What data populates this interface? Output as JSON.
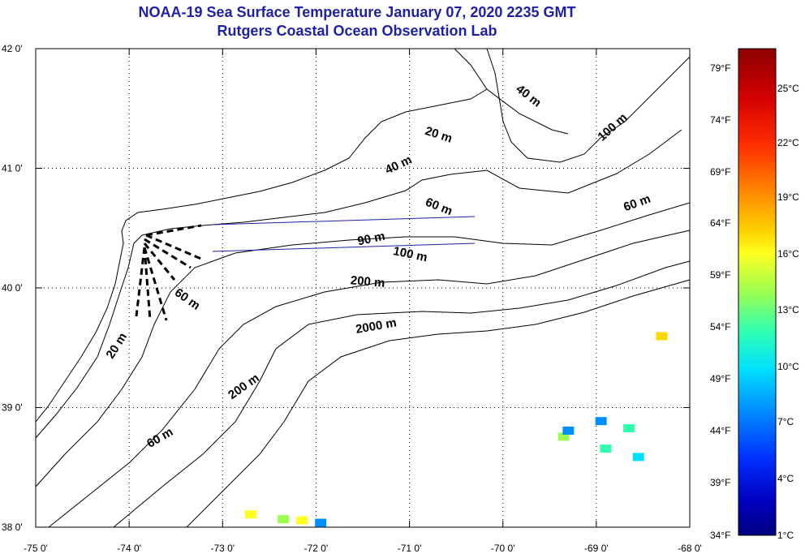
{
  "header": {
    "title": "NOAA-19 Sea Surface Temperature January 07, 2020 2235 GMT",
    "subtitle": "Rutgers Coastal Ocean Observation Lab"
  },
  "map": {
    "lon_range": [
      -75,
      -68
    ],
    "lat_range": [
      38,
      42
    ],
    "lat_ticks": [
      {
        "value": 42,
        "label": "42 0'"
      },
      {
        "value": 41,
        "label": "41 0'"
      },
      {
        "value": 40,
        "label": "40 0'"
      },
      {
        "value": 39,
        "label": "39 0'"
      },
      {
        "value": 38,
        "label": "38 0'"
      }
    ],
    "lon_ticks": [
      {
        "value": -75,
        "label": "-75 0'"
      },
      {
        "value": -74,
        "label": "-74 0'"
      },
      {
        "value": -73,
        "label": "-73 0'"
      },
      {
        "value": -72,
        "label": "-72 0'"
      },
      {
        "value": -71,
        "label": "-71 0'"
      },
      {
        "value": -70,
        "label": "-70 0'"
      },
      {
        "value": -69,
        "label": "-69 0'"
      },
      {
        "value": -68,
        "label": "-68 0'"
      }
    ],
    "grid": "dotted",
    "isobath_labels": [
      {
        "text": "40 m",
        "lon": -69.75,
        "lat": 41.58,
        "rot": 38
      },
      {
        "text": "100 m",
        "lon": -68.8,
        "lat": 41.32,
        "rot": -42
      },
      {
        "text": "20 m",
        "lon": -70.7,
        "lat": 41.25,
        "rot": 18
      },
      {
        "text": "40 m",
        "lon": -71.1,
        "lat": 41.0,
        "rot": -25
      },
      {
        "text": "60 m",
        "lon": -70.7,
        "lat": 40.65,
        "rot": 22
      },
      {
        "text": "60 m",
        "lon": -68.55,
        "lat": 40.68,
        "rot": -20
      },
      {
        "text": "90 m",
        "lon": -71.4,
        "lat": 40.38,
        "rot": -12
      },
      {
        "text": "100 m",
        "lon": -71.0,
        "lat": 40.25,
        "rot": 12
      },
      {
        "text": "200 m",
        "lon": -71.45,
        "lat": 40.02,
        "rot": 5
      },
      {
        "text": "60 m",
        "lon": -73.4,
        "lat": 39.88,
        "rot": 35
      },
      {
        "text": "2000 m",
        "lon": -71.35,
        "lat": 39.65,
        "rot": -10
      },
      {
        "text": "20 m",
        "lon": -74.1,
        "lat": 39.5,
        "rot": -58
      },
      {
        "text": "200 m",
        "lon": -72.75,
        "lat": 39.15,
        "rot": -35
      },
      {
        "text": "60 m",
        "lon": -73.65,
        "lat": 38.72,
        "rot": -30
      }
    ],
    "sst_patches": [
      {
        "lon": -72.7,
        "lat": 38.1,
        "value_f": 62
      },
      {
        "lon": -72.35,
        "lat": 38.06,
        "value_f": 60
      },
      {
        "lon": -72.15,
        "lat": 38.05,
        "value_f": 62
      },
      {
        "lon": -71.95,
        "lat": 38.03,
        "value_f": 47
      },
      {
        "lon": -69.35,
        "lat": 38.75,
        "value_f": 60
      },
      {
        "lon": -69.3,
        "lat": 38.8,
        "value_f": 47
      },
      {
        "lon": -68.95,
        "lat": 38.88,
        "value_f": 48
      },
      {
        "lon": -68.9,
        "lat": 38.65,
        "value_f": 56
      },
      {
        "lon": -68.65,
        "lat": 38.82,
        "value_f": 54
      },
      {
        "lon": -68.55,
        "lat": 38.58,
        "value_f": 52
      },
      {
        "lon": -68.3,
        "lat": 39.59,
        "value_f": 66
      }
    ]
  },
  "colorbar": {
    "f_labels": [
      "79°F",
      "74°F",
      "69°F",
      "64°F",
      "59°F",
      "54°F",
      "49°F",
      "44°F",
      "39°F",
      "34°F"
    ],
    "c_labels": [
      "25°C",
      "22°C",
      "19°C",
      "16°C",
      "13°C",
      "10°C",
      "7°C",
      "4°C",
      "1°C"
    ],
    "colors": [
      "#8b0000",
      "#d40000",
      "#ff3000",
      "#ff8c00",
      "#ffd700",
      "#ffff20",
      "#9cff50",
      "#30ffb0",
      "#00e0ff",
      "#0090ff",
      "#0030ff",
      "#0000c0",
      "#000080"
    ]
  }
}
